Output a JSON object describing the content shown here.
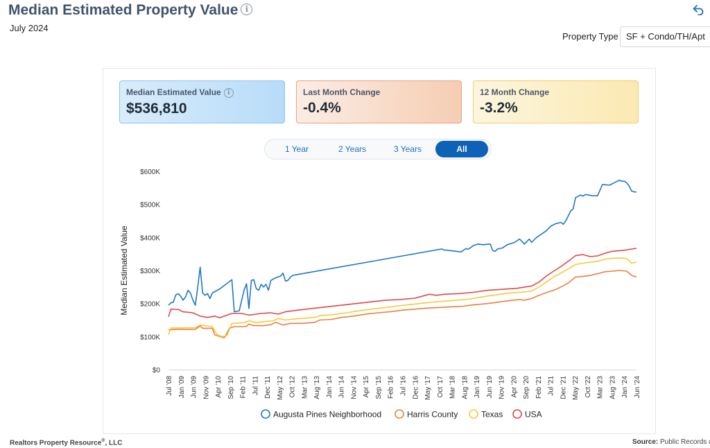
{
  "header": {
    "title": "Median Estimated Property Value",
    "subtitle": "July 2024",
    "property_type_label": "Property Type",
    "property_type_value": "SF + Condo/TH/Apt"
  },
  "cards": [
    {
      "label": "Median Estimated Value",
      "value": "$536,810"
    },
    {
      "label": "Last Month Change",
      "value": "-0.4%"
    },
    {
      "label": "12 Month Change",
      "value": "-3.2%"
    }
  ],
  "tabs": [
    {
      "label": "1 Year",
      "active": false
    },
    {
      "label": "2 Years",
      "active": false
    },
    {
      "label": "3 Years",
      "active": false
    },
    {
      "label": "All",
      "active": true
    }
  ],
  "footer": {
    "left_prefix": "Realtors Property Resource",
    "left_reg": "®",
    "left_suffix": ", LLC",
    "source_label": "Source:",
    "source_value": "Public Records a"
  },
  "chart_data": {
    "type": "line",
    "ylabel": "Median Estimated Value",
    "ylim": [
      0,
      600000
    ],
    "yticks": [
      0,
      100000,
      200000,
      300000,
      400000,
      500000,
      600000
    ],
    "ytick_labels": [
      "$0",
      "$100K",
      "$200K",
      "$300K",
      "$400K",
      "$500K",
      "$600K"
    ],
    "x_range": [
      "2008-07",
      "2024-07"
    ],
    "xtick_labels": [
      "Jul '08",
      "Jan '09",
      "Jun '09",
      "Nov '09",
      "Apr '10",
      "Sep '10",
      "Feb '11",
      "Jul '11",
      "Dec '11",
      "May '12",
      "Oct '12",
      "Mar '13",
      "Aug '13",
      "Jan '14",
      "Jun '14",
      "Nov '14",
      "Apr '15",
      "Sep '15",
      "Feb '16",
      "Jul '16",
      "Dec '16",
      "May '17",
      "Oct '17",
      "Mar '18",
      "Aug '18",
      "Jan '19",
      "Jun '19",
      "Nov '19",
      "Apr '20",
      "Sep '20",
      "Feb '21",
      "Jul '21",
      "Dec '21",
      "May '22",
      "Oct '22",
      "Mar '23",
      "Aug '23",
      "Jan '24",
      "Jun '24"
    ],
    "grid": false,
    "legend": "bottom",
    "colors": {
      "augusta": "#1f77c4",
      "harris": "#e8803c",
      "texas": "#f8c83a",
      "usa": "#e04848"
    },
    "series": [
      {
        "name": "Augusta Pines Neighborhood",
        "key": "augusta",
        "points": [
          [
            "2008-07",
            195000
          ],
          [
            "2008-08",
            202000
          ],
          [
            "2008-09",
            204000
          ],
          [
            "2008-10",
            226000
          ],
          [
            "2008-11",
            230000
          ],
          [
            "2008-12",
            222000
          ],
          [
            "2009-01",
            210000
          ],
          [
            "2009-02",
            220000
          ],
          [
            "2009-03",
            240000
          ],
          [
            "2009-04",
            232000
          ],
          [
            "2009-05",
            210000
          ],
          [
            "2009-06",
            195000
          ],
          [
            "2009-07",
            250000
          ],
          [
            "2009-08",
            310000
          ],
          [
            "2009-09",
            232000
          ],
          [
            "2009-10",
            225000
          ],
          [
            "2009-11",
            230000
          ],
          [
            "2009-12",
            215000
          ],
          [
            "2010-01",
            232000
          ],
          [
            "2010-02",
            236000
          ],
          [
            "2010-04",
            244000
          ],
          [
            "2010-06",
            255000
          ],
          [
            "2010-09",
            272000
          ],
          [
            "2010-10",
            175000
          ],
          [
            "2010-12",
            178000
          ],
          [
            "2011-02",
            240000
          ],
          [
            "2011-03",
            260000
          ],
          [
            "2011-04",
            185000
          ],
          [
            "2011-05",
            270000
          ],
          [
            "2011-06",
            272000
          ],
          [
            "2011-07",
            245000
          ],
          [
            "2011-08",
            240000
          ],
          [
            "2011-09",
            258000
          ],
          [
            "2011-10",
            250000
          ],
          [
            "2011-11",
            258000
          ],
          [
            "2011-12",
            240000
          ],
          [
            "2012-01",
            270000
          ],
          [
            "2012-03",
            278000
          ],
          [
            "2012-05",
            283000
          ],
          [
            "2012-06",
            292000
          ],
          [
            "2012-07",
            268000
          ],
          [
            "2012-08",
            270000
          ],
          [
            "2012-09",
            280000
          ],
          [
            "2012-10",
            285000
          ],
          [
            "2017-11",
            365000
          ],
          [
            "2017-12",
            362000
          ],
          [
            "2018-03",
            360000
          ],
          [
            "2018-05",
            358000
          ],
          [
            "2018-07",
            356000
          ],
          [
            "2018-09",
            366000
          ],
          [
            "2018-10",
            364000
          ],
          [
            "2018-12",
            375000
          ],
          [
            "2019-02",
            380000
          ],
          [
            "2019-04",
            378000
          ],
          [
            "2019-07",
            380000
          ],
          [
            "2019-08",
            360000
          ],
          [
            "2019-09",
            358000
          ],
          [
            "2019-10",
            365000
          ],
          [
            "2019-12",
            368000
          ],
          [
            "2020-02",
            378000
          ],
          [
            "2020-05",
            385000
          ],
          [
            "2020-07",
            395000
          ],
          [
            "2020-08",
            388000
          ],
          [
            "2020-09",
            380000
          ],
          [
            "2020-11",
            395000
          ],
          [
            "2020-12",
            385000
          ],
          [
            "2021-02",
            400000
          ],
          [
            "2021-04",
            410000
          ],
          [
            "2021-06",
            420000
          ],
          [
            "2021-08",
            435000
          ],
          [
            "2021-10",
            442000
          ],
          [
            "2021-12",
            445000
          ],
          [
            "2022-01",
            440000
          ],
          [
            "2022-02",
            450000
          ],
          [
            "2022-04",
            480000
          ],
          [
            "2022-05",
            486000
          ],
          [
            "2022-06",
            520000
          ],
          [
            "2022-08",
            528000
          ],
          [
            "2022-09",
            525000
          ],
          [
            "2022-10",
            530000
          ],
          [
            "2023-01",
            526000
          ],
          [
            "2023-03",
            526000
          ],
          [
            "2023-05",
            560000
          ],
          [
            "2023-08",
            558000
          ],
          [
            "2023-10",
            566000
          ],
          [
            "2023-12",
            573000
          ],
          [
            "2024-01",
            570000
          ],
          [
            "2024-02",
            570000
          ],
          [
            "2024-03",
            565000
          ],
          [
            "2024-04",
            555000
          ],
          [
            "2024-05",
            540000
          ],
          [
            "2024-06",
            538000
          ],
          [
            "2024-07",
            537000
          ]
        ]
      },
      {
        "name": "Harris County",
        "key": "harris",
        "points": [
          [
            "2008-07",
            120000
          ],
          [
            "2008-10",
            122000
          ],
          [
            "2009-06",
            122000
          ],
          [
            "2009-08",
            132000
          ],
          [
            "2009-09",
            125000
          ],
          [
            "2010-01",
            125000
          ],
          [
            "2010-02",
            105000
          ],
          [
            "2010-05",
            98000
          ],
          [
            "2010-06",
            97000
          ],
          [
            "2010-08",
            125000
          ],
          [
            "2010-10",
            130000
          ],
          [
            "2011-01",
            130000
          ],
          [
            "2011-03",
            131000
          ],
          [
            "2011-04",
            138000
          ],
          [
            "2011-06",
            133000
          ],
          [
            "2011-10",
            133000
          ],
          [
            "2012-01",
            136000
          ],
          [
            "2012-03",
            143000
          ],
          [
            "2012-06",
            135000
          ],
          [
            "2012-09",
            140000
          ],
          [
            "2013-02",
            140000
          ],
          [
            "2013-07",
            143000
          ],
          [
            "2013-09",
            150000
          ],
          [
            "2014-02",
            152000
          ],
          [
            "2014-06",
            158000
          ],
          [
            "2014-11",
            162000
          ],
          [
            "2015-04",
            168000
          ],
          [
            "2015-09",
            172000
          ],
          [
            "2016-02",
            175000
          ],
          [
            "2016-07",
            180000
          ],
          [
            "2016-12",
            183000
          ],
          [
            "2017-05",
            186000
          ],
          [
            "2017-10",
            188000
          ],
          [
            "2018-03",
            190000
          ],
          [
            "2018-08",
            192000
          ],
          [
            "2018-12",
            196000
          ],
          [
            "2019-06",
            200000
          ],
          [
            "2019-11",
            205000
          ],
          [
            "2020-04",
            210000
          ],
          [
            "2020-07",
            212000
          ],
          [
            "2020-09",
            210000
          ],
          [
            "2020-12",
            215000
          ],
          [
            "2021-02",
            222000
          ],
          [
            "2021-06",
            233000
          ],
          [
            "2021-09",
            240000
          ],
          [
            "2021-12",
            250000
          ],
          [
            "2022-03",
            262000
          ],
          [
            "2022-06",
            280000
          ],
          [
            "2022-09",
            282000
          ],
          [
            "2022-12",
            285000
          ],
          [
            "2023-03",
            290000
          ],
          [
            "2023-06",
            296000
          ],
          [
            "2023-09",
            298000
          ],
          [
            "2023-12",
            300000
          ],
          [
            "2024-03",
            298000
          ],
          [
            "2024-05",
            285000
          ],
          [
            "2024-07",
            280000
          ]
        ]
      },
      {
        "name": "Texas",
        "key": "texas",
        "points": [
          [
            "2008-07",
            105000
          ],
          [
            "2008-08",
            126000
          ],
          [
            "2009-06",
            127000
          ],
          [
            "2009-08",
            135000
          ],
          [
            "2010-01",
            130000
          ],
          [
            "2010-03",
            105000
          ],
          [
            "2010-05",
            100000
          ],
          [
            "2010-07",
            103000
          ],
          [
            "2010-09",
            140000
          ],
          [
            "2011-02",
            142000
          ],
          [
            "2011-04",
            148000
          ],
          [
            "2011-07",
            142000
          ],
          [
            "2011-10",
            145000
          ],
          [
            "2012-02",
            148000
          ],
          [
            "2012-04",
            155000
          ],
          [
            "2012-07",
            150000
          ],
          [
            "2012-09",
            152000
          ],
          [
            "2013-02",
            155000
          ],
          [
            "2013-07",
            158000
          ],
          [
            "2013-09",
            163000
          ],
          [
            "2014-02",
            166000
          ],
          [
            "2014-08",
            172000
          ],
          [
            "2015-01",
            178000
          ],
          [
            "2015-06",
            183000
          ],
          [
            "2015-11",
            187000
          ],
          [
            "2016-04",
            192000
          ],
          [
            "2016-09",
            196000
          ],
          [
            "2017-02",
            200000
          ],
          [
            "2017-07",
            204000
          ],
          [
            "2017-12",
            207000
          ],
          [
            "2018-05",
            210000
          ],
          [
            "2018-10",
            213000
          ],
          [
            "2019-02",
            218000
          ],
          [
            "2019-07",
            224000
          ],
          [
            "2019-12",
            229000
          ],
          [
            "2020-05",
            233000
          ],
          [
            "2020-09",
            235000
          ],
          [
            "2020-12",
            238000
          ],
          [
            "2021-03",
            250000
          ],
          [
            "2021-06",
            265000
          ],
          [
            "2021-09",
            280000
          ],
          [
            "2021-12",
            292000
          ],
          [
            "2022-03",
            305000
          ],
          [
            "2022-06",
            318000
          ],
          [
            "2022-09",
            322000
          ],
          [
            "2022-12",
            325000
          ],
          [
            "2023-03",
            328000
          ],
          [
            "2023-06",
            334000
          ],
          [
            "2023-09",
            337000
          ],
          [
            "2023-12",
            338000
          ],
          [
            "2024-03",
            336000
          ],
          [
            "2024-05",
            322000
          ],
          [
            "2024-07",
            325000
          ]
        ]
      },
      {
        "name": "USA",
        "key": "usa",
        "points": [
          [
            "2008-07",
            160000
          ],
          [
            "2008-08",
            183000
          ],
          [
            "2008-11",
            182000
          ],
          [
            "2009-01",
            175000
          ],
          [
            "2009-05",
            172000
          ],
          [
            "2009-08",
            162000
          ],
          [
            "2009-11",
            158000
          ],
          [
            "2010-02",
            162000
          ],
          [
            "2010-04",
            157000
          ],
          [
            "2010-07",
            165000
          ],
          [
            "2010-09",
            170000
          ],
          [
            "2011-01",
            170000
          ],
          [
            "2011-04",
            165000
          ],
          [
            "2011-09",
            170000
          ],
          [
            "2012-01",
            172000
          ],
          [
            "2012-04",
            168000
          ],
          [
            "2012-07",
            175000
          ],
          [
            "2012-12",
            180000
          ],
          [
            "2013-06",
            185000
          ],
          [
            "2013-12",
            190000
          ],
          [
            "2014-06",
            195000
          ],
          [
            "2014-12",
            200000
          ],
          [
            "2015-06",
            205000
          ],
          [
            "2015-12",
            210000
          ],
          [
            "2016-06",
            212000
          ],
          [
            "2016-12",
            216000
          ],
          [
            "2017-03",
            222000
          ],
          [
            "2017-06",
            228000
          ],
          [
            "2017-09",
            225000
          ],
          [
            "2017-12",
            228000
          ],
          [
            "2018-06",
            230000
          ],
          [
            "2018-12",
            234000
          ],
          [
            "2019-06",
            240000
          ],
          [
            "2019-12",
            243000
          ],
          [
            "2020-06",
            246000
          ],
          [
            "2020-12",
            253000
          ],
          [
            "2021-03",
            265000
          ],
          [
            "2021-06",
            283000
          ],
          [
            "2021-09",
            298000
          ],
          [
            "2021-12",
            312000
          ],
          [
            "2022-03",
            328000
          ],
          [
            "2022-06",
            345000
          ],
          [
            "2022-09",
            348000
          ],
          [
            "2022-12",
            342000
          ],
          [
            "2023-03",
            344000
          ],
          [
            "2023-06",
            352000
          ],
          [
            "2023-09",
            358000
          ],
          [
            "2023-12",
            360000
          ],
          [
            "2024-03",
            362000
          ],
          [
            "2024-05",
            365000
          ],
          [
            "2024-07",
            367000
          ]
        ]
      }
    ]
  }
}
